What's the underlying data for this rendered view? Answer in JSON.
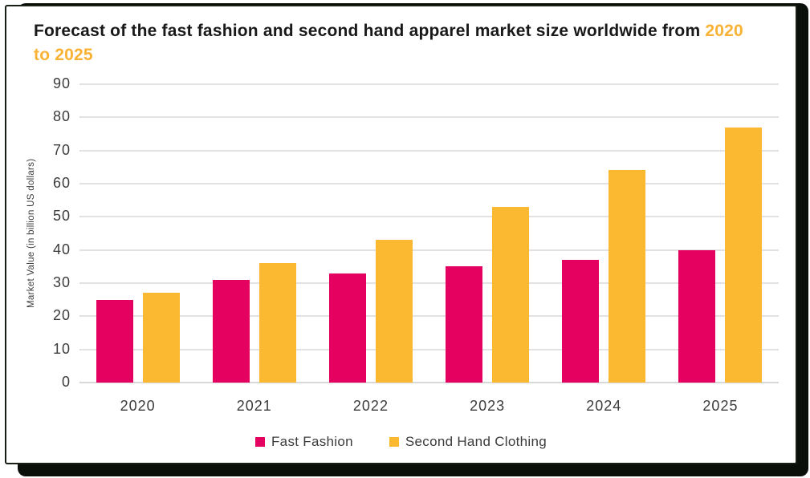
{
  "title": {
    "line1": "Forecast of the fast fashion and second hand apparel market size",
    "line2_prefix": "worldwide from ",
    "line2_highlight": "2020 to 2025"
  },
  "colors": {
    "fast_fashion": "#E4015F",
    "second_hand": "#FBB931",
    "title_highlight": "#F9B233",
    "gridline": "#E2E2E2",
    "axis_text": "#3b3b3b",
    "card_border": "#191f15",
    "card_shadow": "#0b0f0a"
  },
  "chart_data": {
    "type": "bar",
    "title": "Forecast of the fast fashion and second hand apparel market size worldwide from 2020 to 2025",
    "categories": [
      "2020",
      "2021",
      "2022",
      "2023",
      "2024",
      "2025"
    ],
    "series": [
      {
        "name": "Fast Fashion",
        "color": "#E4015F",
        "values": [
          25,
          31,
          33,
          35,
          37,
          40
        ]
      },
      {
        "name": "Second Hand Clothing",
        "color": "#FBB931",
        "values": [
          27,
          36,
          43,
          53,
          64,
          77
        ]
      }
    ],
    "xlabel": "",
    "ylabel": "Market Value (in billion US dollars)",
    "ylim": [
      0,
      90
    ],
    "ytick_step": 10,
    "grid": true,
    "legend_position": "bottom"
  }
}
